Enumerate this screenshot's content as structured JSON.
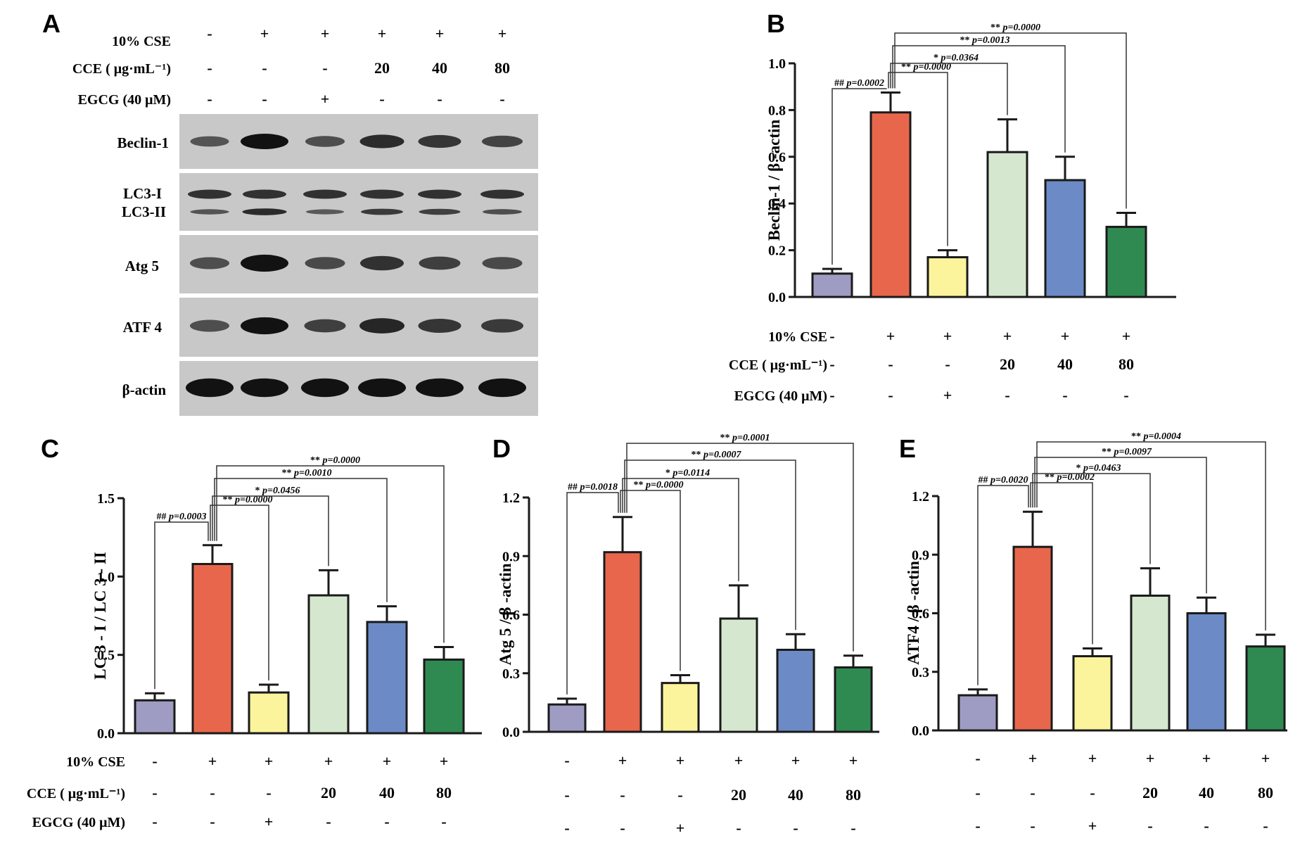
{
  "panel_letters": [
    "A",
    "B",
    "C",
    "D",
    "E"
  ],
  "colors": {
    "bars": [
      "#9f9cc3",
      "#e8674c",
      "#fbf49c",
      "#d5e8cf",
      "#6c8bc6",
      "#2f8a52"
    ],
    "stroke": "#1a1a1a",
    "blot_bg": "#c8c8c8",
    "band": "#121212"
  },
  "treatment": {
    "labels": [
      "10% CSE",
      "CCE ( μg·mL⁻¹)",
      "EGCG (40 μM)"
    ],
    "cse": [
      "-",
      "+",
      "+",
      "+",
      "+",
      "+"
    ],
    "cce": [
      "-",
      "-",
      "-",
      "20",
      "40",
      "80"
    ],
    "egcg": [
      "-",
      "-",
      "+",
      "-",
      "-",
      "-"
    ]
  },
  "western_blot": {
    "panel": "A",
    "lanes": 6,
    "rows": [
      {
        "label": "Beclin-1",
        "intensity": [
          0.35,
          1.0,
          0.4,
          0.75,
          0.65,
          0.5
        ]
      },
      {
        "label": "LC3-I",
        "intensity": [
          0.7,
          0.7,
          0.7,
          0.7,
          0.7,
          0.7
        ]
      },
      {
        "label": "LC3-II",
        "intensity": [
          0.35,
          0.75,
          0.3,
          0.6,
          0.55,
          0.4
        ]
      },
      {
        "label": "Atg 5",
        "intensity": [
          0.4,
          1.0,
          0.45,
          0.7,
          0.55,
          0.45
        ]
      },
      {
        "label": "ATF 4",
        "intensity": [
          0.4,
          1.0,
          0.55,
          0.8,
          0.65,
          0.6
        ]
      },
      {
        "label": "β-actin",
        "intensity": [
          1.0,
          1.0,
          1.0,
          1.0,
          1.0,
          1.0
        ]
      }
    ]
  },
  "chart_data": [
    {
      "panel": "B",
      "type": "bar",
      "ylabel": "Beclin-1 / β -actin",
      "ylim": [
        0,
        1.0
      ],
      "yticks": [
        "0.0",
        "0.2",
        "0.4",
        "0.6",
        "0.8",
        "1.0"
      ],
      "values": [
        0.1,
        0.79,
        0.17,
        0.62,
        0.5,
        0.3
      ],
      "errors": [
        0.02,
        0.085,
        0.03,
        0.14,
        0.1,
        0.06
      ],
      "comparisons": [
        {
          "from": 0,
          "to": 1,
          "sym": "##",
          "p": "p=0.0002"
        },
        {
          "from": 1,
          "to": 2,
          "sym": "**",
          "p": "p=0.0000"
        },
        {
          "from": 1,
          "to": 3,
          "sym": "*",
          "p": "p=0.0364"
        },
        {
          "from": 1,
          "to": 4,
          "sym": "**",
          "p": "p=0.0013"
        },
        {
          "from": 1,
          "to": 5,
          "sym": "**",
          "p": "p=0.0000"
        }
      ],
      "show_row_labels": true
    },
    {
      "panel": "C",
      "type": "bar",
      "ylabel": "LC 3 - I / LC 3 - II",
      "ylim": [
        0,
        1.5
      ],
      "yticks": [
        "0.0",
        "0.5",
        "1.0",
        "1.5"
      ],
      "values": [
        0.21,
        1.08,
        0.26,
        0.88,
        0.71,
        0.47
      ],
      "errors": [
        0.045,
        0.12,
        0.05,
        0.16,
        0.1,
        0.08
      ],
      "comparisons": [
        {
          "from": 0,
          "to": 1,
          "sym": "##",
          "p": "p=0.0003"
        },
        {
          "from": 1,
          "to": 2,
          "sym": "**",
          "p": "p=0.0000"
        },
        {
          "from": 1,
          "to": 3,
          "sym": "*",
          "p": "p=0.0456"
        },
        {
          "from": 1,
          "to": 4,
          "sym": "**",
          "p": "p=0.0010"
        },
        {
          "from": 1,
          "to": 5,
          "sym": "**",
          "p": "p=0.0000"
        }
      ],
      "show_row_labels": true
    },
    {
      "panel": "D",
      "type": "bar",
      "ylabel": "Atg 5 / β -actin",
      "ylim": [
        0,
        1.2
      ],
      "yticks": [
        "0.0",
        "0.3",
        "0.6",
        "0.9",
        "1.2"
      ],
      "values": [
        0.14,
        0.92,
        0.25,
        0.58,
        0.42,
        0.33
      ],
      "errors": [
        0.03,
        0.18,
        0.04,
        0.17,
        0.08,
        0.06
      ],
      "comparisons": [
        {
          "from": 0,
          "to": 1,
          "sym": "##",
          "p": "p=0.0018"
        },
        {
          "from": 1,
          "to": 2,
          "sym": "**",
          "p": "p=0.0000"
        },
        {
          "from": 1,
          "to": 3,
          "sym": "*",
          "p": "p=0.0114"
        },
        {
          "from": 1,
          "to": 4,
          "sym": "**",
          "p": "p=0.0007"
        },
        {
          "from": 1,
          "to": 5,
          "sym": "**",
          "p": "p=0.0001"
        }
      ],
      "show_row_labels": false
    },
    {
      "panel": "E",
      "type": "bar",
      "ylabel": "ATF4 / β -actin",
      "ylim": [
        0,
        1.2
      ],
      "yticks": [
        "0.0",
        "0.3",
        "0.6",
        "0.9",
        "1.2"
      ],
      "values": [
        0.18,
        0.94,
        0.38,
        0.69,
        0.6,
        0.43
      ],
      "errors": [
        0.03,
        0.18,
        0.04,
        0.14,
        0.08,
        0.06
      ],
      "comparisons": [
        {
          "from": 0,
          "to": 1,
          "sym": "##",
          "p": "p=0.0020"
        },
        {
          "from": 1,
          "to": 2,
          "sym": "**",
          "p": "p=0.0002"
        },
        {
          "from": 1,
          "to": 3,
          "sym": "*",
          "p": "p=0.0463"
        },
        {
          "from": 1,
          "to": 4,
          "sym": "**",
          "p": "p=0.0097"
        },
        {
          "from": 1,
          "to": 5,
          "sym": "**",
          "p": "p=0.0004"
        }
      ],
      "show_row_labels": false
    }
  ]
}
